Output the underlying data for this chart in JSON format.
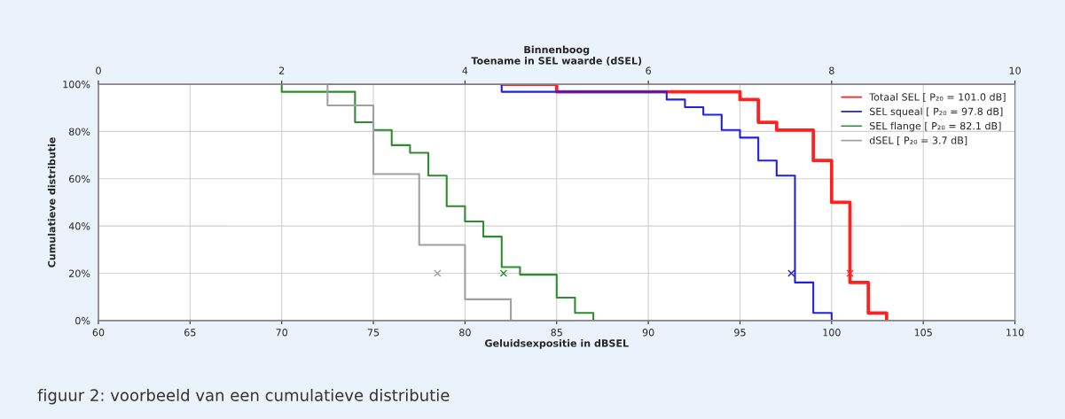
{
  "chart_data": {
    "type": "step",
    "xlabel": "Geluidsexpositie in dBSEL",
    "ylabel": "Cumulatieve distributie",
    "x2label": "Binnenboog\nToename in SEL waarde (dSEL)",
    "xlim": [
      60,
      110
    ],
    "xticks": [
      60,
      65,
      70,
      75,
      80,
      85,
      90,
      95,
      100,
      105,
      110
    ],
    "x2lim": [
      0,
      10
    ],
    "x2ticks": [
      0,
      2,
      4,
      6,
      8,
      10
    ],
    "ylim": [
      0,
      100
    ],
    "yticks": [
      {
        "value": 0,
        "label": "0%"
      },
      {
        "value": 20,
        "label": "20%"
      },
      {
        "value": 40,
        "label": "40%"
      },
      {
        "value": 60,
        "label": "60%"
      },
      {
        "value": 80,
        "label": "80%"
      },
      {
        "value": 100,
        "label": "100%"
      }
    ],
    "grid": true,
    "legend": "top right",
    "line_style": "solid",
    "series": [
      {
        "name": "Totaal SEL [ P₂₀ = 101.0 dB]",
        "color": "#ff2020",
        "x": [
          82,
          85,
          95,
          96,
          97,
          99,
          100,
          101,
          102,
          103
        ],
        "values": [
          100,
          96.8,
          93.5,
          83.9,
          80.6,
          67.7,
          50,
          16.1,
          3.2,
          0
        ]
      },
      {
        "name": "SEL squeal [ P₂₀ = 97.8 dB]",
        "color": "#2020e0",
        "x": [
          72.5,
          82,
          91,
          92,
          93,
          94,
          95,
          96,
          97,
          98,
          99,
          100
        ],
        "values": [
          100,
          96.8,
          93.5,
          90.3,
          87.1,
          80.6,
          77.4,
          67.7,
          61.3,
          16.1,
          3.2,
          0
        ]
      },
      {
        "name": "SEL flange [ P₂₀ = 82.1 dB]",
        "color": "#2e8b2e",
        "x": [
          70,
          70,
          74,
          75,
          76,
          77,
          78,
          79,
          80,
          81,
          82,
          83,
          85,
          86,
          87
        ],
        "values": [
          100,
          96.8,
          83.9,
          80.6,
          74.2,
          71.0,
          61.3,
          48.4,
          41.9,
          35.5,
          22.6,
          19.4,
          9.7,
          3.2,
          0
        ]
      },
      {
        "name": "dSEL [ P₂₀ = 3.7 dB]",
        "color": "#a0a0a0",
        "axis": "x2",
        "x": [
          2,
          2.5,
          3,
          3.5,
          4,
          4.5
        ],
        "values": [
          100,
          91,
          62,
          32,
          9,
          0
        ]
      },
      {
        "type": "scatter",
        "marker": "cross",
        "x": [
          101.0,
          97.8,
          82.1
        ],
        "values": [
          20,
          20,
          20
        ],
        "colors": [
          "#ff2020",
          "#2020e0",
          "#2e8b2e"
        ]
      },
      {
        "type": "scatter",
        "marker": "cross",
        "axis": "x2",
        "x": [
          3.7
        ],
        "values": [
          20
        ],
        "colors": [
          "#a0a0a0"
        ]
      }
    ],
    "annotations": [
      "figuur 2: voorbeeld van een cumulatieve distributie"
    ]
  }
}
